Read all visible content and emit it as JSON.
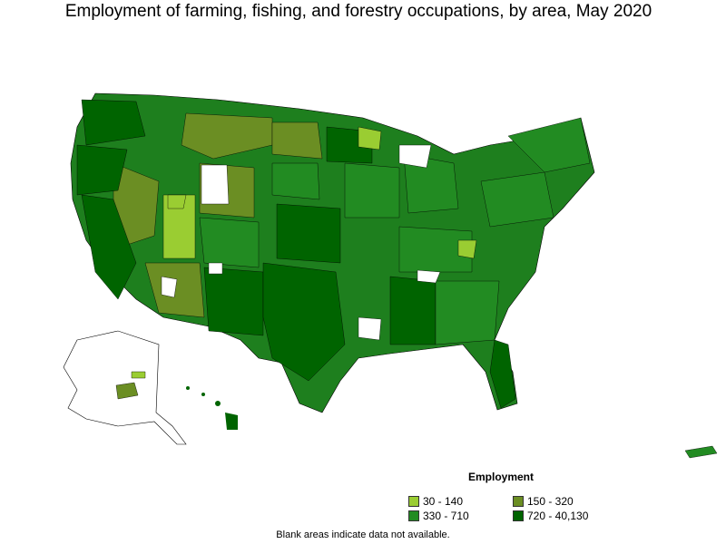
{
  "title": "Employment of farming, fishing, and forestry occupations, by area, May 2020",
  "legend": {
    "title": "Employment",
    "items": [
      {
        "label": "30 - 140",
        "color": "#9acd32"
      },
      {
        "label": "150 - 320",
        "color": "#6b8e23"
      },
      {
        "label": "330 - 710",
        "color": "#228b22"
      },
      {
        "label": "720 - 40,130",
        "color": "#006400"
      }
    ]
  },
  "footnote": "Blank areas indicate data not available."
}
